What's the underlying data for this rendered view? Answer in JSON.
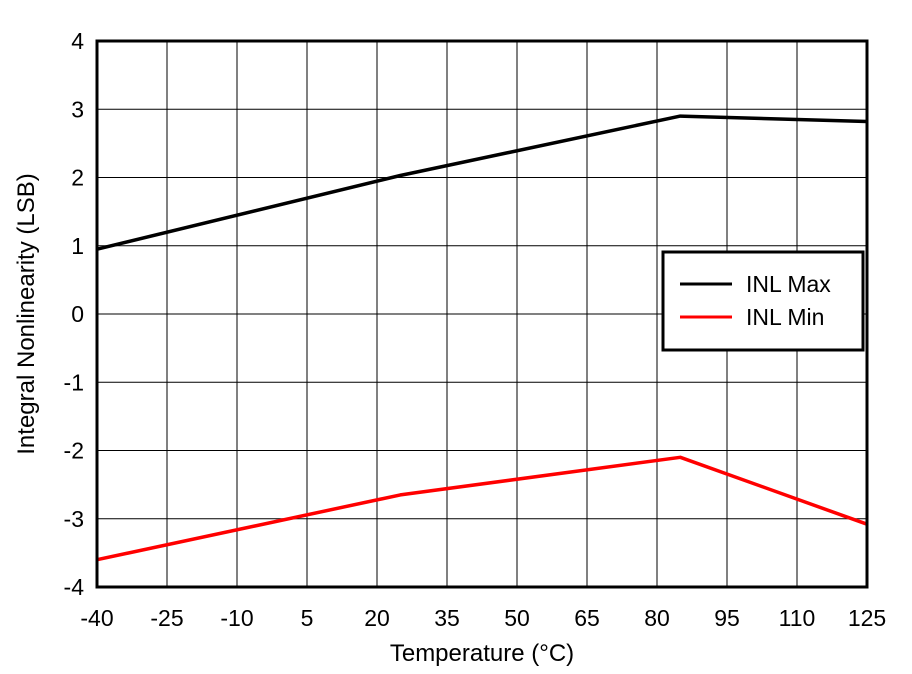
{
  "chart_data": {
    "type": "line",
    "title": "",
    "xlabel": "Temperature (°C)",
    "ylabel": "Integral Nonlinearity (LSB)",
    "x_ticks": [
      "-40",
      "-25",
      "-10",
      "5",
      "20",
      "35",
      "50",
      "65",
      "80",
      "95",
      "110",
      "125"
    ],
    "y_ticks": [
      "4",
      "3",
      "2",
      "1",
      "0",
      "-1",
      "-2",
      "-3",
      "-4"
    ],
    "ylim": [
      -4,
      4
    ],
    "grid": true,
    "legend_position": "right",
    "series": [
      {
        "name": "INL Max",
        "color": "#000000",
        "x": [
          -40,
          25,
          85,
          125
        ],
        "y": [
          0.95,
          2.03,
          2.9,
          2.82
        ]
      },
      {
        "name": "INL Min",
        "color": "#ff0000",
        "x": [
          -40,
          25,
          85,
          125
        ],
        "y": [
          -3.6,
          -2.65,
          -2.1,
          -3.08
        ]
      }
    ]
  }
}
